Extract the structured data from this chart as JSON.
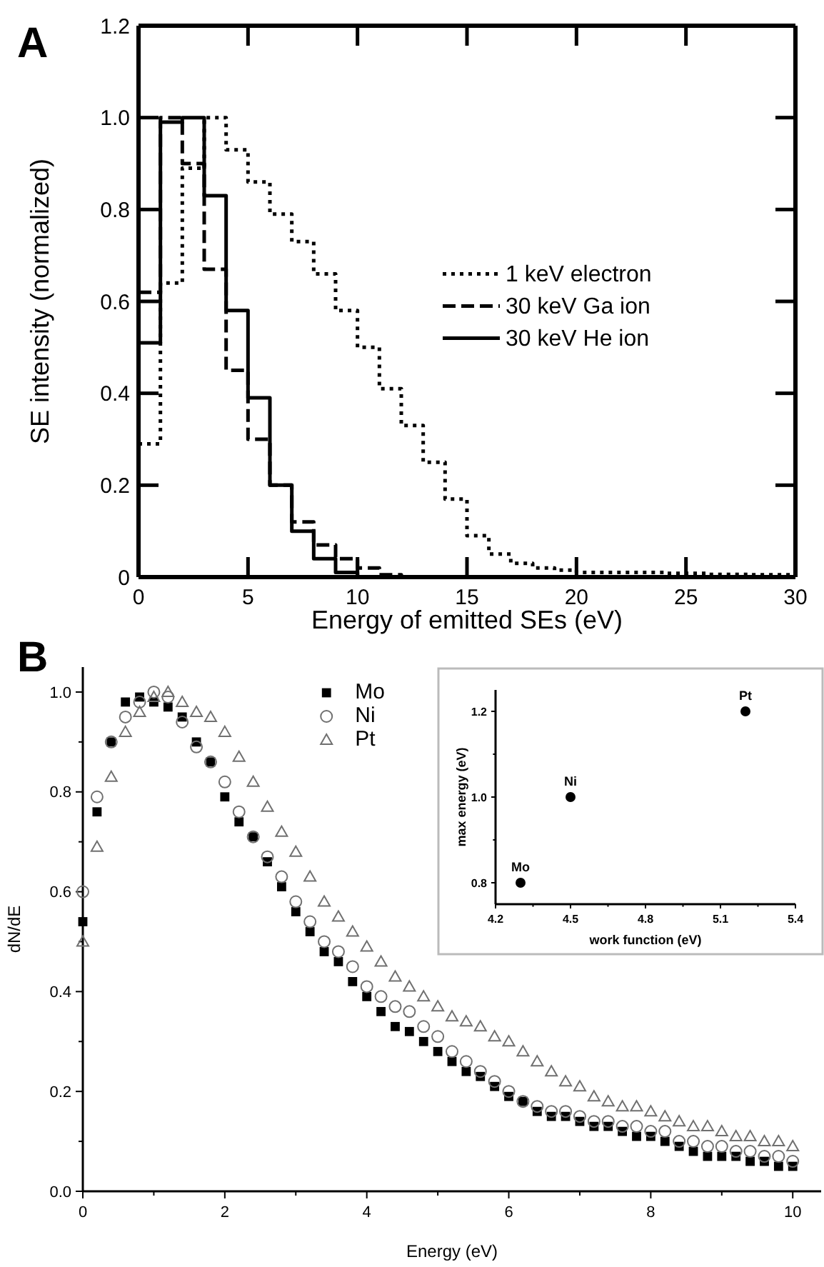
{
  "chart_data": [
    {
      "type": "step",
      "title": "A",
      "xlabel": "Energy of emitted SEs (eV)",
      "ylabel": "SE intensity (normalized)",
      "xlim": [
        0,
        30
      ],
      "ylim": [
        0,
        1.2
      ],
      "xticks": [
        0,
        5,
        10,
        15,
        20,
        25,
        30
      ],
      "yticks": [
        0,
        0.2,
        0.4,
        0.6,
        0.8,
        {
          "value": 1,
          "label": "1.0"
        },
        1.2
      ],
      "legend": "right",
      "series": [
        {
          "name": "1 keV electron",
          "color": "#000000",
          "line_style": "dotted",
          "x": [
            0,
            1,
            2,
            3,
            4,
            5,
            6,
            7,
            8,
            9,
            10,
            11,
            12,
            13,
            14,
            15,
            16,
            17,
            18,
            19,
            20,
            21,
            22,
            23,
            24,
            25,
            26,
            27,
            28,
            29,
            30
          ],
          "values": [
            0.29,
            0.64,
            0.89,
            1.0,
            0.93,
            0.86,
            0.79,
            0.73,
            0.66,
            0.58,
            0.5,
            0.41,
            0.33,
            0.25,
            0.17,
            0.09,
            0.05,
            0.03,
            0.02,
            0.015,
            0.01,
            0.01,
            0.01,
            0.01,
            0.008,
            0.008,
            0.006,
            0.006,
            0.005,
            0.005,
            0.005
          ]
        },
        {
          "name": "30 keV Ga ion",
          "color": "#000000",
          "line_style": "dashed",
          "x": [
            0,
            1,
            2,
            3,
            4,
            5,
            6,
            7,
            8,
            9,
            10,
            11,
            12
          ],
          "values": [
            0.62,
            1.0,
            0.9,
            0.67,
            0.45,
            0.3,
            0.2,
            0.12,
            0.07,
            0.04,
            0.02,
            0.005,
            0
          ]
        },
        {
          "name": "30 keV He ion",
          "color": "#000000",
          "line_style": "solid",
          "x": [
            0,
            1,
            2,
            3,
            4,
            5,
            6,
            7,
            8,
            9,
            10
          ],
          "values": [
            0.51,
            0.99,
            1.0,
            0.83,
            0.58,
            0.39,
            0.2,
            0.1,
            0.04,
            0.01,
            0
          ]
        }
      ]
    },
    {
      "type": "scatter",
      "title": "B",
      "xlabel": "Energy (eV)",
      "ylabel": "dN/dE",
      "xlim": [
        0,
        10.4
      ],
      "ylim": [
        0,
        1.05
      ],
      "xticks": [
        0,
        {
          "value": 1,
          "label": null
        },
        2,
        {
          "value": 3,
          "label": null
        },
        4,
        {
          "value": 5,
          "label": null
        },
        6,
        {
          "value": 7,
          "label": null
        },
        8,
        {
          "value": 9,
          "label": null
        },
        10
      ],
      "yticks": [
        {
          "value": 0,
          "label": "0.0"
        },
        {
          "value": 0.1,
          "label": null
        },
        0.2,
        {
          "value": 0.3,
          "label": null
        },
        0.4,
        {
          "value": 0.5,
          "label": null
        },
        0.6,
        {
          "value": 0.7,
          "label": null
        },
        0.8,
        {
          "value": 0.9,
          "label": null
        },
        {
          "value": 1,
          "label": "1.0"
        }
      ],
      "legend": "top",
      "x": [
        0,
        0.2,
        0.4,
        0.6,
        0.8,
        1,
        1.2,
        1.4,
        1.6,
        1.8,
        2,
        2.2,
        2.4,
        2.6,
        2.8,
        3,
        3.2,
        3.4,
        3.6,
        3.8,
        4,
        4.2,
        4.4,
        4.6,
        4.8,
        5,
        5.2,
        5.4,
        5.6,
        5.8,
        6,
        6.2,
        6.4,
        6.6,
        6.8,
        7,
        7.2,
        7.4,
        7.6,
        7.8,
        8,
        8.2,
        8.4,
        8.6,
        8.8,
        9,
        9.2,
        9.4,
        9.6,
        9.8,
        10
      ],
      "series": [
        {
          "name": "Mo",
          "color": "#000000",
          "marker": "square",
          "values": [
            0.54,
            0.76,
            0.9,
            0.98,
            0.99,
            0.98,
            0.97,
            0.95,
            0.9,
            0.86,
            0.79,
            0.74,
            0.71,
            0.66,
            0.61,
            0.56,
            0.52,
            0.48,
            0.46,
            0.42,
            0.39,
            0.36,
            0.33,
            0.32,
            0.3,
            0.28,
            0.26,
            0.24,
            0.23,
            0.21,
            0.19,
            0.18,
            0.16,
            0.15,
            0.15,
            0.14,
            0.13,
            0.13,
            0.12,
            0.11,
            0.11,
            0.1,
            0.09,
            0.08,
            0.07,
            0.07,
            0.07,
            0.06,
            0.06,
            0.05,
            0.05
          ]
        },
        {
          "name": "Ni",
          "color": "#707070",
          "marker": "circle",
          "values": [
            0.6,
            0.79,
            0.9,
            0.95,
            0.98,
            1.0,
            0.99,
            0.94,
            0.89,
            0.86,
            0.82,
            0.76,
            0.71,
            0.67,
            0.63,
            0.58,
            0.54,
            0.5,
            0.48,
            0.45,
            0.41,
            0.39,
            0.37,
            0.36,
            0.33,
            0.31,
            0.28,
            0.26,
            0.24,
            0.22,
            0.2,
            0.18,
            0.17,
            0.16,
            0.16,
            0.15,
            0.14,
            0.14,
            0.13,
            0.13,
            0.12,
            0.12,
            0.1,
            0.1,
            0.09,
            0.09,
            0.08,
            0.08,
            0.07,
            0.07,
            0.06
          ]
        },
        {
          "name": "Pt",
          "color": "#707070",
          "marker": "triangle",
          "values": [
            0.5,
            0.69,
            0.83,
            0.92,
            0.96,
            0.99,
            1.0,
            0.98,
            0.96,
            0.95,
            0.92,
            0.87,
            0.82,
            0.77,
            0.72,
            0.68,
            0.63,
            0.58,
            0.55,
            0.52,
            0.49,
            0.46,
            0.43,
            0.41,
            0.39,
            0.37,
            0.35,
            0.34,
            0.33,
            0.31,
            0.3,
            0.28,
            0.26,
            0.24,
            0.22,
            0.21,
            0.19,
            0.18,
            0.17,
            0.17,
            0.16,
            0.15,
            0.14,
            0.13,
            0.13,
            0.12,
            0.11,
            0.11,
            0.1,
            0.1,
            0.09
          ]
        }
      ]
    },
    {
      "type": "scatter",
      "xlabel": "work function (eV)",
      "ylabel": "max energy (eV)",
      "xlim": [
        4.2,
        5.4
      ],
      "ylim": [
        0.75,
        1.25
      ],
      "xticks": [
        4.2,
        {
          "value": 4.35,
          "label": null
        },
        4.5,
        {
          "value": 4.65,
          "label": null
        },
        4.8,
        {
          "value": 4.95,
          "label": null
        },
        5.1,
        {
          "value": 5.25,
          "label": null
        },
        5.4
      ],
      "yticks": [
        0.8,
        {
          "value": 0.9,
          "label": null
        },
        {
          "value": 1,
          "label": "1.0"
        },
        {
          "value": 1.1,
          "label": null
        },
        1.2
      ],
      "marker": "circle",
      "series": [
        {
          "color": "#000000",
          "x": [
            4.3,
            4.5,
            5.2
          ],
          "values": [
            0.8,
            1.0,
            1.2
          ]
        }
      ],
      "annotations": [
        {
          "text": "Mo",
          "x": 4.3,
          "y": 0.8
        },
        {
          "text": "Ni",
          "x": 4.5,
          "y": 1.0
        },
        {
          "text": "Pt",
          "x": 5.2,
          "y": 1.2
        }
      ]
    }
  ]
}
